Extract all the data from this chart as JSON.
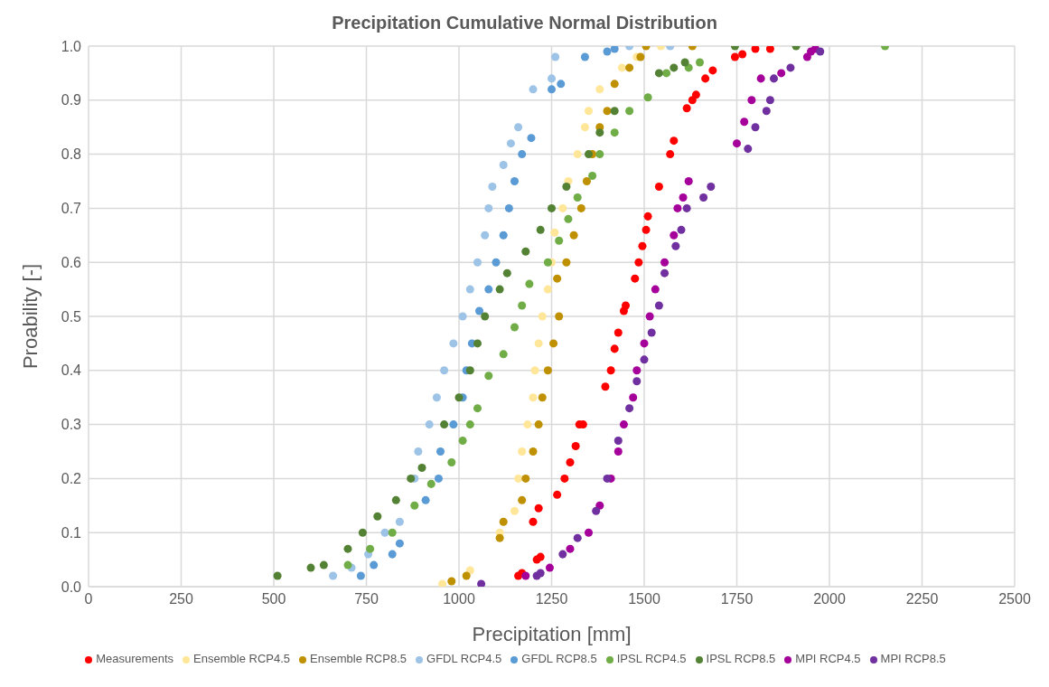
{
  "chart_data": {
    "type": "scatter",
    "title": "Precipitation Cumulative Normal Distribution",
    "xlabel": "Precipitation [mm]",
    "ylabel": "Proability [-]",
    "xlim": [
      0,
      2500
    ],
    "xticks": [
      0,
      250,
      500,
      750,
      1000,
      1250,
      1500,
      1750,
      2000,
      2250,
      2500
    ],
    "ylim": [
      0,
      1
    ],
    "yticks": [
      {
        "value": 0,
        "label": "0.0"
      },
      0.1,
      0.2,
      0.3,
      0.4,
      0.5,
      0.6,
      0.7,
      0.8,
      0.9,
      {
        "value": 1,
        "label": "1.0"
      }
    ],
    "grid": true,
    "legend": "bottom",
    "marker": "circle",
    "series": [
      {
        "name": "Measurements",
        "color": "#ff0000",
        "x": [
          1160,
          1170,
          1210,
          1220,
          1200,
          1215,
          1265,
          1285,
          1300,
          1315,
          1325,
          1335,
          1395,
          1410,
          1420,
          1430,
          1445,
          1450,
          1475,
          1485,
          1495,
          1505,
          1510,
          1540,
          1570,
          1580,
          1615,
          1630,
          1640,
          1665,
          1685,
          1745,
          1765,
          1800,
          1840
        ],
        "values": [
          0.02,
          0.025,
          0.05,
          0.055,
          0.12,
          0.145,
          0.17,
          0.2,
          0.23,
          0.26,
          0.3,
          0.3,
          0.37,
          0.4,
          0.44,
          0.47,
          0.51,
          0.52,
          0.57,
          0.6,
          0.63,
          0.66,
          0.685,
          0.74,
          0.8,
          0.825,
          0.885,
          0.9,
          0.91,
          0.94,
          0.955,
          0.98,
          0.985,
          0.995,
          0.995
        ]
      },
      {
        "name": "Ensemble RCP4.5",
        "color": "#ffe699",
        "x": [
          955,
          1030,
          1110,
          1150,
          1160,
          1170,
          1185,
          1200,
          1205,
          1215,
          1225,
          1240,
          1250,
          1258,
          1280,
          1295,
          1320,
          1340,
          1350,
          1380,
          1440,
          1480,
          1545
        ],
        "values": [
          0.005,
          0.03,
          0.1,
          0.14,
          0.2,
          0.25,
          0.3,
          0.35,
          0.4,
          0.45,
          0.5,
          0.55,
          0.6,
          0.655,
          0.7,
          0.75,
          0.8,
          0.85,
          0.88,
          0.92,
          0.96,
          0.98,
          1.0
        ]
      },
      {
        "name": "Ensemble RCP8.5",
        "color": "#bf9000",
        "x": [
          980,
          1020,
          1110,
          1120,
          1170,
          1180,
          1200,
          1215,
          1225,
          1240,
          1255,
          1270,
          1265,
          1290,
          1310,
          1330,
          1345,
          1360,
          1380,
          1400,
          1420,
          1460,
          1490,
          1505,
          1630
        ],
        "values": [
          0.01,
          0.02,
          0.09,
          0.12,
          0.16,
          0.2,
          0.25,
          0.3,
          0.35,
          0.4,
          0.45,
          0.5,
          0.57,
          0.6,
          0.65,
          0.7,
          0.75,
          0.8,
          0.85,
          0.88,
          0.93,
          0.96,
          0.98,
          1.0,
          1.0
        ]
      },
      {
        "name": "GFDL RCP4.5",
        "color": "#9dc3e6",
        "x": [
          660,
          710,
          755,
          800,
          840,
          880,
          890,
          920,
          940,
          960,
          985,
          1010,
          1030,
          1050,
          1070,
          1080,
          1090,
          1120,
          1140,
          1160,
          1200,
          1250,
          1260,
          1460,
          1570
        ],
        "values": [
          0.02,
          0.035,
          0.06,
          0.1,
          0.12,
          0.2,
          0.25,
          0.3,
          0.35,
          0.4,
          0.45,
          0.5,
          0.55,
          0.6,
          0.65,
          0.7,
          0.74,
          0.78,
          0.82,
          0.85,
          0.92,
          0.94,
          0.98,
          1.0,
          1.0
        ]
      },
      {
        "name": "GFDL RCP8.5",
        "color": "#5b9bd5",
        "x": [
          735,
          770,
          820,
          840,
          910,
          945,
          950,
          985,
          1010,
          1020,
          1035,
          1055,
          1080,
          1100,
          1120,
          1135,
          1150,
          1170,
          1195,
          1250,
          1275,
          1340,
          1400,
          1420
        ],
        "values": [
          0.02,
          0.04,
          0.06,
          0.08,
          0.16,
          0.2,
          0.25,
          0.3,
          0.35,
          0.4,
          0.45,
          0.51,
          0.55,
          0.6,
          0.65,
          0.7,
          0.75,
          0.8,
          0.83,
          0.92,
          0.93,
          0.98,
          0.99,
          0.995
        ]
      },
      {
        "name": "IPSL RCP4.5",
        "color": "#70ad47",
        "x": [
          700,
          760,
          820,
          880,
          925,
          980,
          1010,
          1030,
          1050,
          1080,
          1120,
          1150,
          1170,
          1190,
          1240,
          1270,
          1295,
          1320,
          1360,
          1380,
          1420,
          1460,
          1510,
          1560,
          1620,
          1650,
          2150
        ],
        "values": [
          0.04,
          0.07,
          0.1,
          0.15,
          0.19,
          0.23,
          0.27,
          0.3,
          0.33,
          0.39,
          0.43,
          0.48,
          0.52,
          0.56,
          0.6,
          0.64,
          0.68,
          0.72,
          0.76,
          0.8,
          0.84,
          0.88,
          0.905,
          0.95,
          0.96,
          0.97,
          1.0
        ]
      },
      {
        "name": "IPSL RCP8.5",
        "color": "#548235",
        "x": [
          510,
          600,
          635,
          700,
          740,
          780,
          830,
          870,
          900,
          960,
          1000,
          1030,
          1050,
          1070,
          1110,
          1130,
          1180,
          1220,
          1250,
          1290,
          1350,
          1380,
          1420,
          1540,
          1580,
          1610,
          1745,
          1910
        ],
        "values": [
          0.02,
          0.035,
          0.04,
          0.07,
          0.1,
          0.13,
          0.16,
          0.2,
          0.22,
          0.3,
          0.35,
          0.4,
          0.45,
          0.5,
          0.55,
          0.58,
          0.62,
          0.66,
          0.7,
          0.74,
          0.8,
          0.84,
          0.88,
          0.95,
          0.96,
          0.97,
          1.0,
          1.0
        ]
      },
      {
        "name": "MPI RCP4.5",
        "color": "#a5009a",
        "x": [
          1180,
          1245,
          1300,
          1350,
          1380,
          1410,
          1430,
          1445,
          1470,
          1480,
          1500,
          1515,
          1530,
          1555,
          1580,
          1590,
          1605,
          1620,
          1750,
          1770,
          1790,
          1815,
          1870,
          1940,
          1950,
          1962
        ],
        "values": [
          0.02,
          0.035,
          0.07,
          0.1,
          0.15,
          0.2,
          0.25,
          0.3,
          0.35,
          0.4,
          0.45,
          0.5,
          0.55,
          0.6,
          0.65,
          0.7,
          0.72,
          0.75,
          0.82,
          0.86,
          0.9,
          0.94,
          0.95,
          0.98,
          0.99,
          0.995
        ]
      },
      {
        "name": "MPI RCP8.5",
        "color": "#7030a0",
        "x": [
          1060,
          1210,
          1220,
          1280,
          1320,
          1370,
          1400,
          1430,
          1460,
          1480,
          1500,
          1520,
          1540,
          1555,
          1585,
          1600,
          1615,
          1660,
          1680,
          1780,
          1800,
          1830,
          1840,
          1850,
          1895,
          1975
        ],
        "values": [
          0.005,
          0.02,
          0.025,
          0.06,
          0.09,
          0.14,
          0.2,
          0.27,
          0.33,
          0.38,
          0.42,
          0.47,
          0.52,
          0.58,
          0.63,
          0.66,
          0.7,
          0.72,
          0.74,
          0.81,
          0.85,
          0.88,
          0.9,
          0.94,
          0.96,
          0.99
        ]
      }
    ]
  }
}
